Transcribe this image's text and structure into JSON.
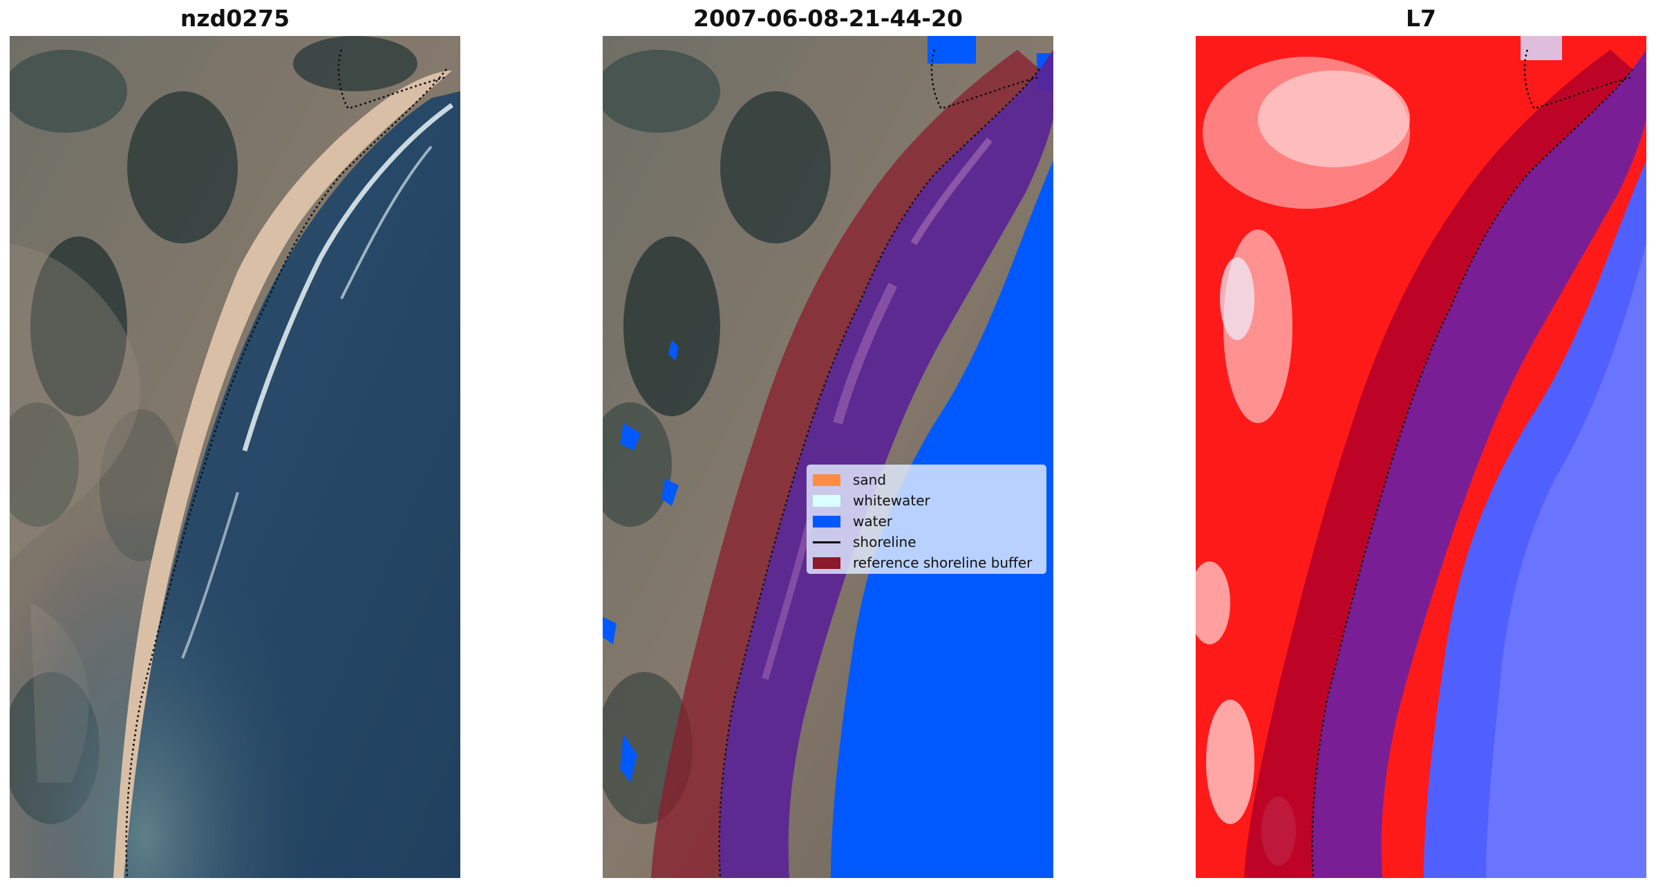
{
  "panels": [
    {
      "title": "nzd0275",
      "kind": "rgb-imagery"
    },
    {
      "title": "2007-06-08-21-44-20",
      "kind": "classified-imagery"
    },
    {
      "title": "L7",
      "kind": "index-map"
    }
  ],
  "legend": {
    "items": [
      {
        "label": "sand",
        "color": "#ff8c42",
        "symbol": "patch"
      },
      {
        "label": "whitewater",
        "color": "#d9ffff",
        "symbol": "patch"
      },
      {
        "label": "water",
        "color": "#0059ff",
        "symbol": "patch"
      },
      {
        "label": "shoreline",
        "color": "#000000",
        "symbol": "line"
      },
      {
        "label": "reference shoreline buffer",
        "color": "#8b1a2b",
        "symbol": "patch"
      }
    ]
  },
  "colors": {
    "land": "#7d7a72",
    "vegetation_dark": "#2f3d3c",
    "sand": "#d8bfa6",
    "ocean": "#244463",
    "water_class": "#0059ff",
    "buffer": "#8b1a2b",
    "index_red": "#ff1a1a",
    "index_blue": "#5060ff"
  }
}
